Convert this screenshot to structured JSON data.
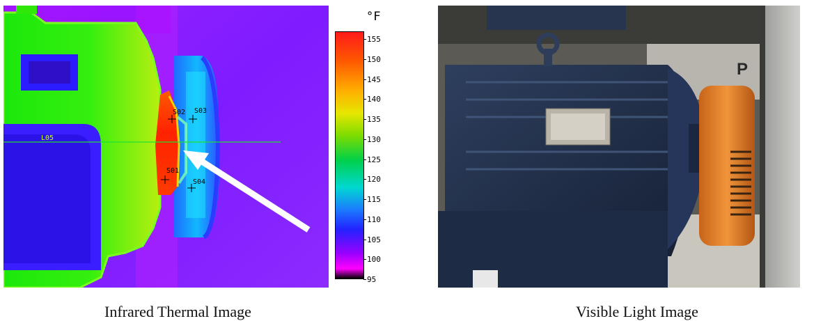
{
  "captions": {
    "left": "Infrared Thermal Image",
    "right": "Visible Light Image"
  },
  "thermal": {
    "unit": "°F",
    "scale_ticks": [
      "155",
      "150",
      "145",
      "140",
      "135",
      "130",
      "125",
      "120",
      "115",
      "110",
      "105",
      "100",
      "95"
    ],
    "line_label": "L05",
    "spots": [
      {
        "label": "S02"
      },
      {
        "label": "S03"
      },
      {
        "label": "S01"
      },
      {
        "label": "S04"
      }
    ]
  },
  "visible": {
    "pump_letter": "P"
  },
  "colors": {
    "hot": "#ff2a10",
    "green": "#37f00a",
    "purple": "#8a20ff",
    "motor_blue": "#23324d",
    "coupling_orange": "#e5832a"
  }
}
